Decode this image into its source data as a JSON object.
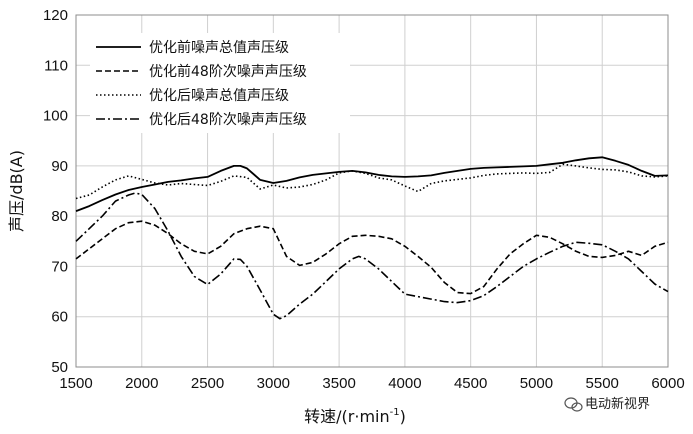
{
  "chart_data": {
    "type": "line",
    "xlabel_main": "转速/(r·min",
    "xlabel_sup": "-1",
    "xlabel_close": ")",
    "ylabel": "声压/dB(A)",
    "xlim": [
      1500,
      6000
    ],
    "ylim": [
      50,
      120
    ],
    "xticks": [
      "1500",
      "2000",
      "2500",
      "3000",
      "3500",
      "4000",
      "4500",
      "5000",
      "5500",
      "6000"
    ],
    "yticks": [
      "50",
      "60",
      "70",
      "80",
      "90",
      "100",
      "110",
      "120"
    ],
    "grid": true,
    "legend_position": "top-left",
    "series": [
      {
        "name": "优化前噪声总值声压级",
        "style": "solid",
        "color": "#000000",
        "x": [
          1500,
          1600,
          1700,
          1800,
          1900,
          2000,
          2100,
          2200,
          2300,
          2400,
          2500,
          2600,
          2700,
          2750,
          2800,
          2900,
          3000,
          3100,
          3200,
          3300,
          3400,
          3500,
          3600,
          3700,
          3800,
          3900,
          4000,
          4100,
          4200,
          4300,
          4400,
          4500,
          4600,
          4700,
          4800,
          4900,
          5000,
          5100,
          5200,
          5300,
          5400,
          5500,
          5600,
          5700,
          5800,
          5900,
          6000
        ],
        "y": [
          81,
          82,
          83.2,
          84.3,
          85.2,
          85.8,
          86.3,
          86.8,
          87.1,
          87.5,
          87.8,
          89,
          90,
          90,
          89.5,
          87.2,
          86.6,
          87,
          87.7,
          88.2,
          88.5,
          88.8,
          89,
          88.7,
          88.2,
          87.9,
          87.8,
          87.9,
          88.1,
          88.6,
          89,
          89.4,
          89.6,
          89.7,
          89.8,
          89.9,
          90,
          90.3,
          90.6,
          91.1,
          91.5,
          91.7,
          91,
          90.2,
          89,
          88,
          88.1
        ]
      },
      {
        "name": "优化前48阶次噪声声压级",
        "style": "dashed",
        "color": "#000000",
        "x": [
          1500,
          1600,
          1700,
          1800,
          1900,
          2000,
          2100,
          2200,
          2300,
          2400,
          2500,
          2600,
          2700,
          2800,
          2900,
          3000,
          3100,
          3200,
          3300,
          3400,
          3500,
          3600,
          3700,
          3800,
          3900,
          4000,
          4100,
          4200,
          4300,
          4400,
          4500,
          4600,
          4700,
          4800,
          4900,
          5000,
          5100,
          5200,
          5300,
          5400,
          5500,
          5600,
          5700,
          5800,
          5900,
          6000
        ],
        "y": [
          71.5,
          73.5,
          75.5,
          77.5,
          78.7,
          79,
          78.2,
          76.5,
          74.5,
          73,
          72.5,
          74,
          76.5,
          77.5,
          78,
          77.5,
          72,
          70.2,
          70.8,
          72.5,
          74.5,
          76,
          76.2,
          76,
          75.5,
          74,
          72,
          69.8,
          66.8,
          64.8,
          64.6,
          66,
          69.5,
          72.5,
          74.5,
          76.2,
          75.8,
          74.5,
          73,
          72,
          71.8,
          72.2,
          73,
          72.2,
          74,
          74.8
        ]
      },
      {
        "name": "优化后噪声总值声压级",
        "style": "dotted",
        "color": "#000000",
        "x": [
          1500,
          1600,
          1700,
          1800,
          1900,
          2000,
          2100,
          2200,
          2300,
          2400,
          2500,
          2600,
          2700,
          2800,
          2900,
          3000,
          3100,
          3200,
          3300,
          3400,
          3500,
          3600,
          3700,
          3800,
          3900,
          4000,
          4100,
          4200,
          4300,
          4400,
          4500,
          4600,
          4700,
          4800,
          4900,
          5000,
          5100,
          5200,
          5300,
          5400,
          5500,
          5600,
          5700,
          5800,
          5900,
          6000
        ],
        "y": [
          83.5,
          84.2,
          85.8,
          87.2,
          88,
          87.3,
          86.6,
          86.2,
          86.5,
          86.3,
          86.1,
          86.9,
          88,
          87.7,
          85.4,
          86.2,
          85.6,
          85.8,
          86.3,
          87.2,
          88.6,
          89,
          88.5,
          87.6,
          87.2,
          86,
          84.9,
          86.5,
          87,
          87.3,
          87.6,
          88.1,
          88.4,
          88.5,
          88.6,
          88.5,
          88.7,
          90.3,
          90,
          89.6,
          89.3,
          89.2,
          88.8,
          88,
          87.8,
          88
        ]
      },
      {
        "name": "优化后48阶次噪声声压级",
        "style": "dashdot",
        "color": "#000000",
        "x": [
          1500,
          1600,
          1700,
          1800,
          1900,
          1950,
          2000,
          2100,
          2200,
          2300,
          2400,
          2500,
          2600,
          2700,
          2750,
          2800,
          2900,
          3000,
          3050,
          3100,
          3200,
          3300,
          3400,
          3500,
          3600,
          3650,
          3700,
          3800,
          3900,
          4000,
          4100,
          4200,
          4300,
          4400,
          4500,
          4600,
          4700,
          4800,
          4900,
          5000,
          5100,
          5200,
          5300,
          5400,
          5500,
          5600,
          5700,
          5800,
          5900,
          6000
        ],
        "y": [
          75,
          77.5,
          80,
          83,
          84.2,
          84.6,
          84.3,
          81.5,
          77,
          72,
          68,
          66.4,
          68.5,
          71.5,
          71.4,
          70,
          65.3,
          60.5,
          59.6,
          60.2,
          62.5,
          64.5,
          67,
          69.5,
          71.5,
          72,
          71.5,
          69.5,
          67,
          64.5,
          64,
          63.5,
          63,
          62.8,
          63.2,
          64.2,
          66,
          68,
          70,
          71.5,
          72.8,
          74,
          74.8,
          74.6,
          74.3,
          73,
          71.5,
          69,
          66.5,
          65
        ]
      }
    ]
  },
  "watermark": {
    "text": "电动新视界",
    "icon": "wechat-icon"
  }
}
